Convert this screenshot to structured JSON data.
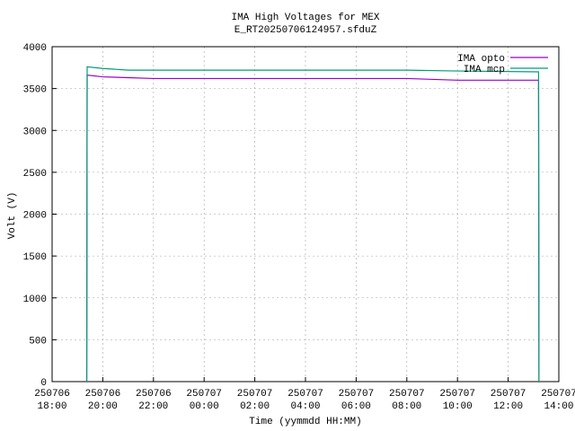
{
  "chart_data": {
    "type": "line",
    "title": "IMA High Voltages for MEX",
    "subtitle": "E_RT20250706124957.sfduZ",
    "x_label": "Time (yymmdd HH:MM)",
    "y_label": "Volt (V)",
    "x": [
      "250706 19:22",
      "250706 19:23",
      "250706 20:00",
      "250706 21:00",
      "250706 22:00",
      "250707 04:00",
      "250707 08:00",
      "250707 10:00",
      "250707 13:12",
      "250707 13:13"
    ],
    "series": [
      {
        "name": "IMA opto",
        "color": "#9400d3",
        "values": [
          0,
          3660,
          3640,
          3630,
          3620,
          3620,
          3620,
          3600,
          3600,
          0
        ]
      },
      {
        "name": "IMA mcp",
        "color": "#009e73",
        "values": [
          0,
          3760,
          3740,
          3720,
          3720,
          3720,
          3720,
          3710,
          3700,
          0
        ]
      }
    ],
    "xlim": [
      "250706 18:00",
      "250707 14:00"
    ],
    "xticks": [
      "250706 18:00",
      "250706 20:00",
      "250706 22:00",
      "250707 00:00",
      "250707 02:00",
      "250707 04:00",
      "250707 06:00",
      "250707 08:00",
      "250707 10:00",
      "250707 12:00",
      "250707 14:00"
    ],
    "ylim": [
      0,
      4000
    ],
    "yticks": [
      0,
      500,
      1000,
      1500,
      2000,
      2500,
      3000,
      3500,
      4000
    ],
    "grid": true,
    "legend": "top-right"
  }
}
